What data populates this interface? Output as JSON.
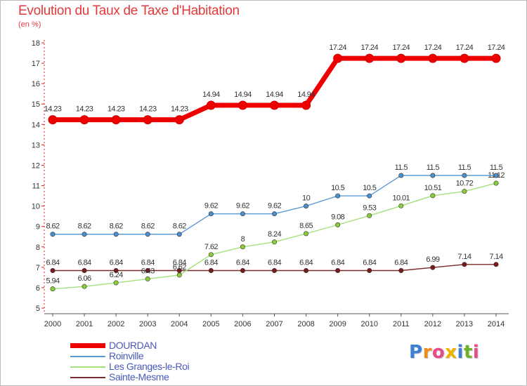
{
  "header": {
    "title": "Evolution du Taux de Taxe d'Habitation",
    "subtitle": "(en %)"
  },
  "logo": {
    "text": "Proxiti"
  },
  "chart_data": {
    "type": "line",
    "title": "Evolution du Taux de Taxe d'Habitation",
    "ylabel": "(en %)",
    "xlabel": "",
    "ylim": [
      5,
      18
    ],
    "yticks": [
      5,
      6,
      7,
      8,
      9,
      10,
      11,
      12,
      13,
      14,
      15,
      16,
      17,
      18
    ],
    "categories": [
      "2000",
      "2001",
      "2002",
      "2003",
      "2004",
      "2005",
      "2006",
      "2007",
      "2008",
      "2009",
      "2010",
      "2011",
      "2012",
      "2013",
      "2014"
    ],
    "grid": false,
    "legend_position": "bottom-left",
    "series": [
      {
        "name": "DOURDAN",
        "color": "#ee0000",
        "values": [
          14.23,
          14.23,
          14.23,
          14.23,
          14.23,
          14.94,
          14.94,
          14.94,
          14.94,
          17.24,
          17.24,
          17.24,
          17.24,
          17.24,
          17.24
        ],
        "labels": [
          "14.23",
          "14.23",
          "14.23",
          "14.23",
          "14.23",
          "14.94",
          "14.94",
          "14.94",
          "14.94",
          "17.24",
          "17.24",
          "17.24",
          "17.24",
          "17.24",
          "17.24"
        ]
      },
      {
        "name": "Roinville",
        "color": "#5b9bd5",
        "marker_color": "#4a90d0",
        "values": [
          8.62,
          8.62,
          8.62,
          8.62,
          8.62,
          9.62,
          9.62,
          9.62,
          10,
          10.5,
          10.5,
          11.5,
          11.5,
          11.5,
          11.5
        ],
        "labels": [
          "8.62",
          "8.62",
          "8.62",
          "8.62",
          "8.62",
          "9.62",
          "9.62",
          "9.62",
          "10",
          "10.5",
          "10.5",
          "11.5",
          "11.5",
          "11.5",
          "11.5"
        ]
      },
      {
        "name": "Les Granges-le-Roi",
        "color": "#a6e07a",
        "marker_color": "#8ccc3a",
        "values": [
          5.94,
          6.06,
          6.24,
          6.43,
          6.62,
          7.62,
          8,
          8.24,
          8.65,
          9.08,
          9.53,
          10.01,
          10.51,
          10.72,
          11.12
        ],
        "labels": [
          "5.94",
          "6.06",
          "6.24",
          "6.43",
          "6.62",
          "7.62",
          "8",
          "8.24",
          "8.65",
          "9.08",
          "9.53",
          "10.01",
          "10.51",
          "10.72",
          "11.12"
        ]
      },
      {
        "name": "Sainte-Mesme",
        "color": "#7a2a2a",
        "marker_color": "#7a1a1a",
        "values": [
          6.84,
          6.84,
          6.84,
          6.84,
          6.84,
          6.84,
          6.84,
          6.84,
          6.84,
          6.84,
          6.84,
          6.84,
          6.99,
          7.14,
          7.14
        ],
        "labels": [
          "6.84",
          "6.84",
          "6.84",
          "6.84",
          "6.84",
          "6.84",
          "6.84",
          "6.84",
          "6.84",
          "6.84",
          "6.84",
          "6.84",
          "6.99",
          "7.14",
          "7.14"
        ]
      }
    ]
  }
}
